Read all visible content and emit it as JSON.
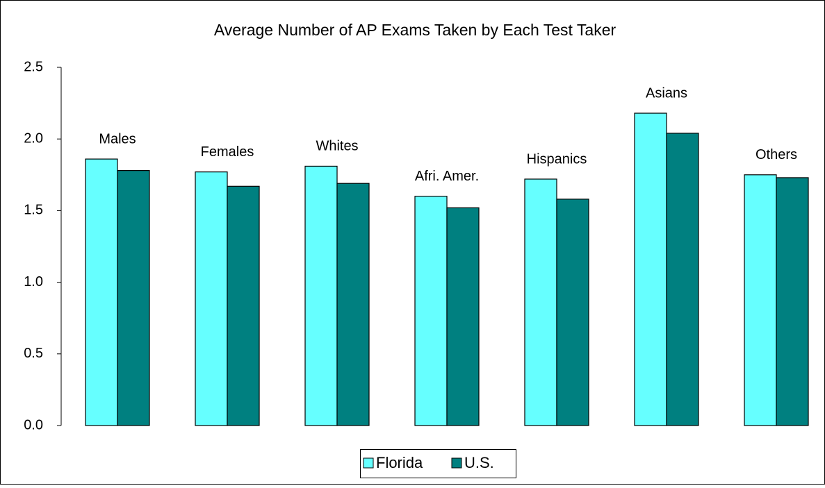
{
  "chart_data": {
    "type": "bar",
    "title": "Average Number of AP Exams Taken by Each Test Taker",
    "categories": [
      "Males",
      "Females",
      "Whites",
      "Afri. Amer.",
      "Hispanics",
      "Asians",
      "Others"
    ],
    "series": [
      {
        "name": "Florida",
        "color": "#66FFFF",
        "values": [
          1.86,
          1.77,
          1.81,
          1.6,
          1.72,
          2.18,
          1.75
        ]
      },
      {
        "name": "U.S.",
        "color": "#008080",
        "values": [
          1.78,
          1.67,
          1.69,
          1.52,
          1.58,
          2.04,
          1.73
        ]
      }
    ],
    "ylim": [
      0,
      2.5
    ],
    "yticks": [
      {
        "value": 0,
        "label": "0.0"
      },
      {
        "value": 0.5,
        "label": "0.5"
      },
      {
        "value": 1,
        "label": "1.0"
      },
      {
        "value": 1.5,
        "label": "1.5"
      },
      {
        "value": 2,
        "label": "2.0"
      },
      {
        "value": 2.5,
        "label": "2.5"
      }
    ],
    "legend": "bottom"
  }
}
